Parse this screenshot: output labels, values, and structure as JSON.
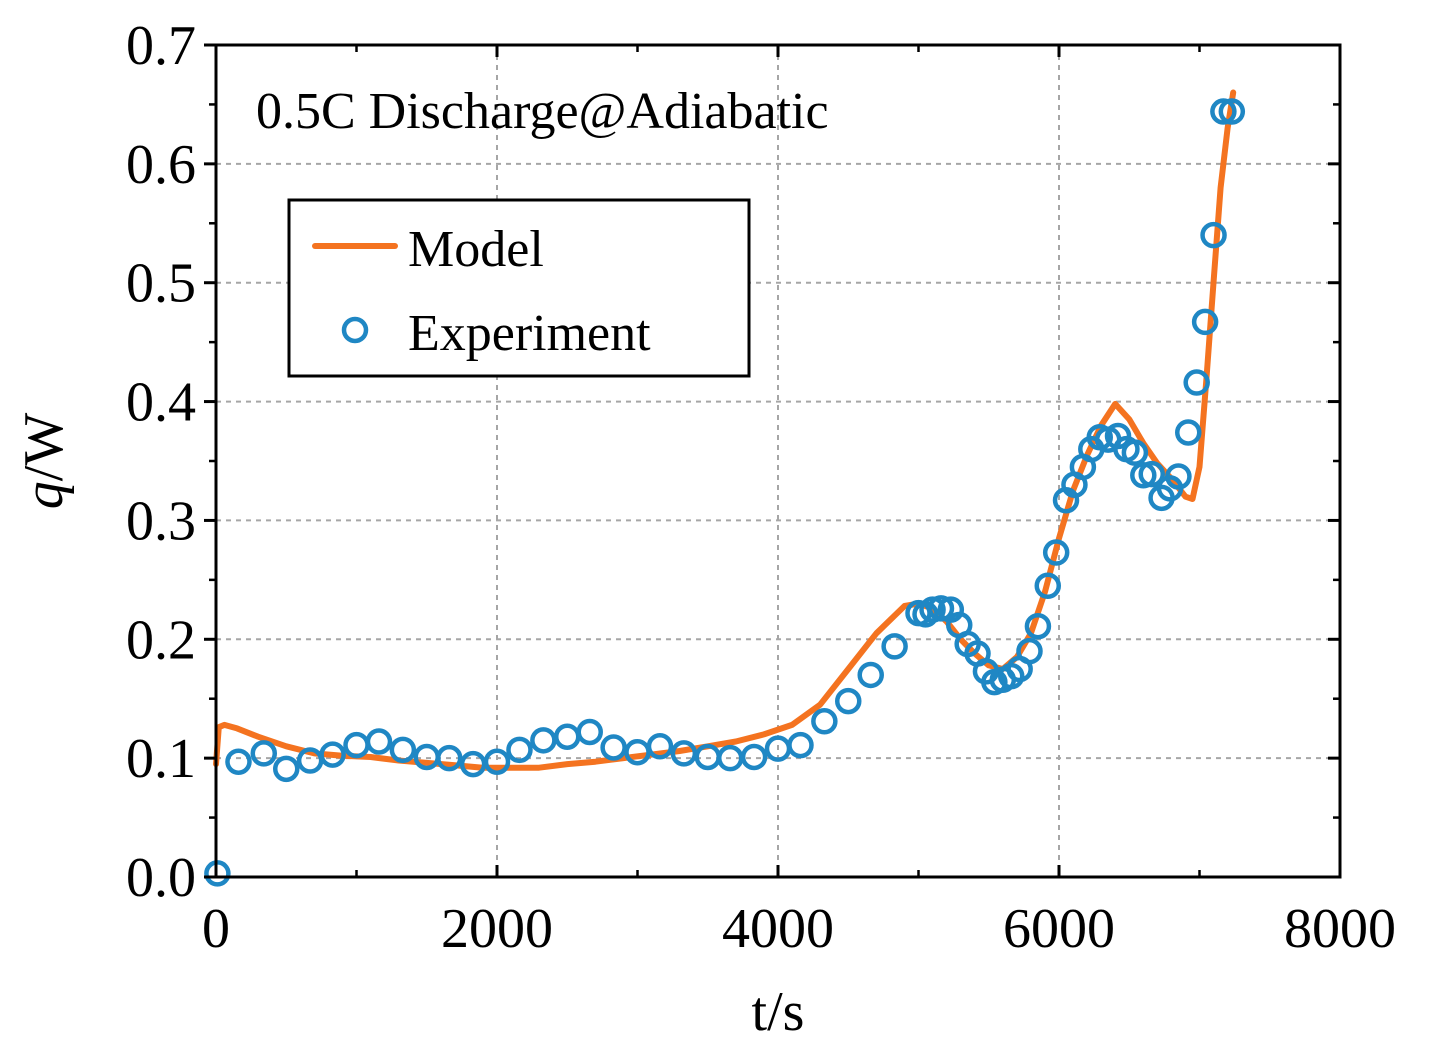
{
  "chart_data": {
    "type": "line",
    "title": "",
    "annotation": "0.5C Discharge@Adiabatic",
    "xlabel": "t/s",
    "ylabel_italic": "q",
    "ylabel_rest": "/W",
    "xlim": [
      0,
      8000
    ],
    "ylim": [
      0,
      0.7
    ],
    "x_ticks": [
      0,
      2000,
      4000,
      6000,
      8000
    ],
    "x_tick_labels": [
      "0",
      "2000",
      "4000",
      "6000",
      "8000"
    ],
    "y_ticks": [
      0.0,
      0.1,
      0.2,
      0.3,
      0.4,
      0.5,
      0.6,
      0.7
    ],
    "y_tick_labels": [
      "0.0",
      "0.1",
      "0.2",
      "0.3",
      "0.4",
      "0.5",
      "0.6",
      "0.7"
    ],
    "grid": true,
    "legend_position": "upper-left",
    "colors": {
      "model": "#f47320",
      "experiment": "#1f87c4",
      "grid": "#a6a6a6",
      "axis": "#000000"
    },
    "series": [
      {
        "name": "Model",
        "style": "line",
        "x": [
          0,
          20,
          60,
          150,
          300,
          500,
          700,
          900,
          1100,
          1300,
          1500,
          1700,
          1900,
          2100,
          2300,
          2500,
          2700,
          2900,
          3100,
          3300,
          3500,
          3700,
          3900,
          4100,
          4300,
          4500,
          4700,
          4900,
          5000,
          5100,
          5200,
          5300,
          5400,
          5500,
          5600,
          5700,
          5800,
          5900,
          6000,
          6100,
          6200,
          6300,
          6400,
          6500,
          6600,
          6700,
          6800,
          6900,
          6950,
          7000,
          7050,
          7100,
          7150,
          7200,
          7240
        ],
        "y": [
          0.095,
          0.126,
          0.128,
          0.125,
          0.118,
          0.11,
          0.104,
          0.102,
          0.101,
          0.098,
          0.096,
          0.094,
          0.092,
          0.092,
          0.092,
          0.095,
          0.097,
          0.1,
          0.103,
          0.106,
          0.11,
          0.114,
          0.12,
          0.128,
          0.145,
          0.175,
          0.205,
          0.228,
          0.23,
          0.226,
          0.215,
          0.2,
          0.188,
          0.178,
          0.175,
          0.185,
          0.205,
          0.24,
          0.285,
          0.325,
          0.355,
          0.38,
          0.398,
          0.385,
          0.365,
          0.348,
          0.335,
          0.32,
          0.318,
          0.345,
          0.42,
          0.5,
          0.58,
          0.63,
          0.66
        ]
      },
      {
        "name": "Experiment",
        "style": "open-circle",
        "x": [
          10,
          160,
          340,
          500,
          670,
          830,
          1000,
          1160,
          1330,
          1500,
          1660,
          1830,
          2000,
          2160,
          2330,
          2500,
          2660,
          2830,
          3000,
          3160,
          3330,
          3500,
          3660,
          3830,
          4000,
          4160,
          4330,
          4500,
          4660,
          4830,
          5000,
          5050,
          5100,
          5160,
          5230,
          5290,
          5350,
          5420,
          5480,
          5540,
          5600,
          5660,
          5720,
          5790,
          5850,
          5920,
          5980,
          6050,
          6110,
          6170,
          6230,
          6290,
          6350,
          6420,
          6480,
          6540,
          6600,
          6660,
          6730,
          6790,
          6850,
          6920,
          6980,
          7040,
          7100,
          7170,
          7230
        ],
        "y": [
          0.003,
          0.097,
          0.104,
          0.091,
          0.098,
          0.103,
          0.111,
          0.114,
          0.107,
          0.101,
          0.1,
          0.095,
          0.097,
          0.107,
          0.115,
          0.118,
          0.122,
          0.109,
          0.105,
          0.11,
          0.104,
          0.101,
          0.1,
          0.101,
          0.108,
          0.111,
          0.131,
          0.148,
          0.17,
          0.194,
          0.222,
          0.221,
          0.225,
          0.226,
          0.225,
          0.212,
          0.196,
          0.188,
          0.173,
          0.164,
          0.166,
          0.169,
          0.175,
          0.19,
          0.211,
          0.245,
          0.273,
          0.317,
          0.33,
          0.345,
          0.36,
          0.37,
          0.368,
          0.371,
          0.36,
          0.357,
          0.338,
          0.339,
          0.319,
          0.327,
          0.337,
          0.374,
          0.416,
          0.467,
          0.54,
          0.644,
          0.644
        ]
      }
    ]
  }
}
